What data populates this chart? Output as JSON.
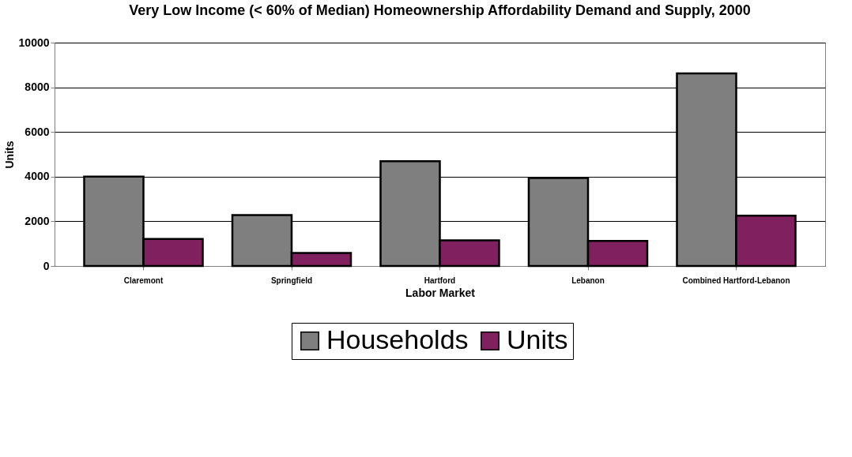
{
  "chart_data": {
    "type": "bar",
    "title": "Very Low Income (< 60% of Median) Homeownership Affordability Demand and Supply, 2000",
    "xlabel": "Labor Market",
    "ylabel": "Units",
    "categories": [
      "Claremont",
      "Springfield",
      "Hartford",
      "Lebanon",
      "Combined Hartford-Lebanon"
    ],
    "series": [
      {
        "name": "Households",
        "color": "#7f7f7f",
        "values": [
          4000,
          2280,
          4690,
          3940,
          8620
        ]
      },
      {
        "name": "Units",
        "color": "#80205f",
        "values": [
          1210,
          580,
          1150,
          1120,
          2250
        ]
      }
    ],
    "ylim": [
      0,
      10000
    ],
    "yticks": [
      0,
      2000,
      4000,
      6000,
      8000,
      10000
    ],
    "grid": "y",
    "legend": "bottom"
  }
}
